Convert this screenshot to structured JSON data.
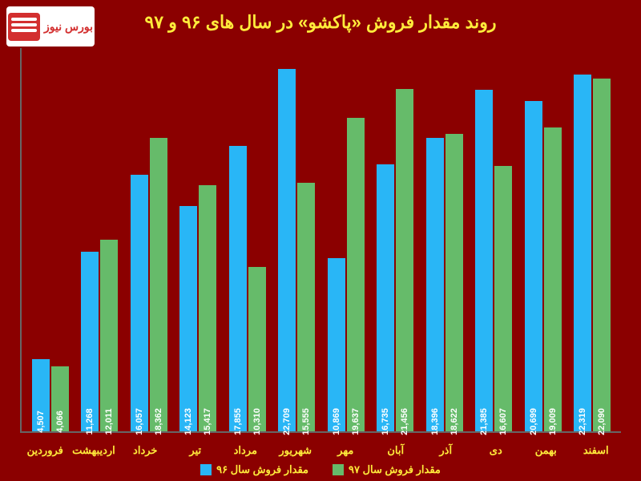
{
  "logo_text": "بورس نیوز",
  "title": "روند مقدار فروش «پاکشو» در سال های ۹۶ و ۹۷",
  "chart": {
    "type": "bar",
    "max_value": 24000,
    "colors": {
      "series1": "#29b6f6",
      "series2": "#66bb6a"
    },
    "categories": [
      "فروردین",
      "اردیبهشت",
      "خرداد",
      "تیر",
      "مرداد",
      "شهریور",
      "مهر",
      "آبان",
      "آذر",
      "دی",
      "بهمن",
      "اسفند"
    ],
    "series1_values": [
      4507,
      11268,
      16057,
      14123,
      17855,
      22709,
      10869,
      16735,
      18396,
      21385,
      20699,
      22319
    ],
    "series2_values": [
      4066,
      12011,
      18362,
      15417,
      10310,
      15555,
      19637,
      21456,
      18622,
      16607,
      19009,
      22090
    ],
    "series1_labels": [
      "4,507",
      "11,268",
      "16,057",
      "14,123",
      "17,855",
      "22,709",
      "10,869",
      "16,735",
      "18,396",
      "21,385",
      "20,699",
      "22,319"
    ],
    "series2_labels": [
      "4,066",
      "12,011",
      "18,362",
      "15,417",
      "10,310",
      "15,555",
      "19,637",
      "21,456",
      "18,622",
      "16,607",
      "19,009",
      "22,090"
    ]
  },
  "legend": {
    "series1": "مقدار فروش سال ۹۶",
    "series2": "مقدار فروش سال ۹۷"
  }
}
